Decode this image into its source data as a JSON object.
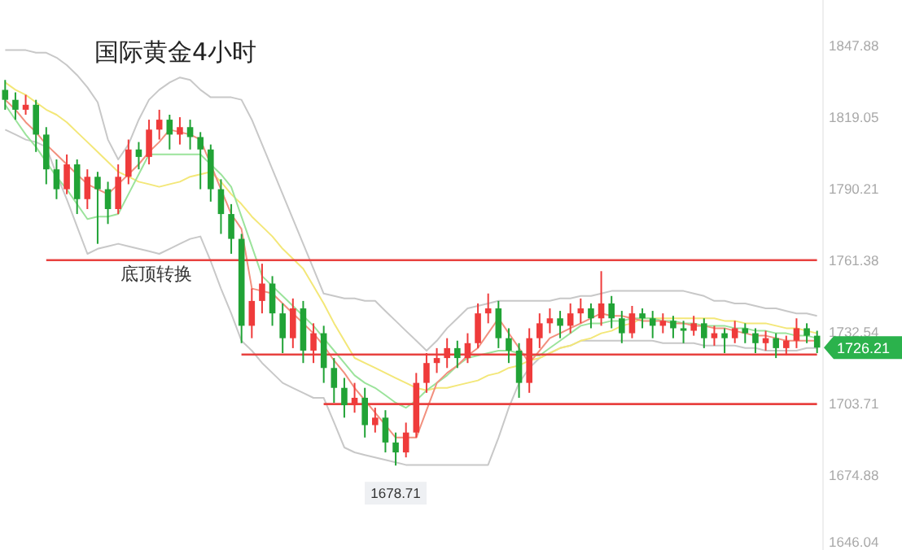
{
  "chart_data": {
    "type": "candlestick",
    "title": "国际黄金4小时",
    "categories": [
      null,
      null,
      null,
      null,
      null,
      null,
      null,
      null,
      null,
      null,
      null,
      null,
      null,
      null,
      null,
      null,
      null,
      null,
      null,
      null,
      null,
      null,
      null,
      null,
      null,
      null,
      null,
      null,
      null,
      null,
      null,
      null,
      null,
      null,
      null,
      null,
      null,
      null,
      null,
      null,
      null,
      null,
      null,
      null,
      null,
      null,
      null,
      null,
      null,
      null,
      null,
      null,
      null,
      null,
      null,
      null,
      null,
      null,
      null,
      null,
      null,
      null,
      null,
      null,
      null,
      null,
      null,
      null,
      null,
      null,
      null,
      null,
      null,
      null,
      null,
      null,
      null,
      null,
      null,
      null
    ],
    "ohlc": [
      [
        1830,
        1834,
        1822,
        1826
      ],
      [
        1826,
        1829,
        1818,
        1822
      ],
      [
        1822,
        1828,
        1820,
        1824
      ],
      [
        1824,
        1826,
        1805,
        1812
      ],
      [
        1812,
        1815,
        1792,
        1798
      ],
      [
        1798,
        1802,
        1786,
        1790
      ],
      [
        1790,
        1804,
        1788,
        1800
      ],
      [
        1800,
        1802,
        1780,
        1786
      ],
      [
        1786,
        1798,
        1782,
        1795
      ],
      [
        1795,
        1797,
        1768,
        1790
      ],
      [
        1790,
        1793,
        1776,
        1782
      ],
      [
        1782,
        1800,
        1780,
        1795
      ],
      [
        1795,
        1810,
        1792,
        1806
      ],
      [
        1806,
        1809,
        1798,
        1803
      ],
      [
        1803,
        1818,
        1800,
        1814
      ],
      [
        1814,
        1822,
        1810,
        1818
      ],
      [
        1818,
        1820,
        1806,
        1812
      ],
      [
        1812,
        1819,
        1808,
        1815
      ],
      [
        1815,
        1818,
        1806,
        1811
      ],
      [
        1811,
        1813,
        1790,
        1806
      ],
      [
        1806,
        1808,
        1785,
        1790
      ],
      [
        1790,
        1794,
        1772,
        1780
      ],
      [
        1780,
        1784,
        1764,
        1770
      ],
      [
        1770,
        1772,
        1728,
        1735
      ],
      [
        1735,
        1750,
        1730,
        1745
      ],
      [
        1745,
        1760,
        1740,
        1752
      ],
      [
        1752,
        1755,
        1735,
        1740
      ],
      [
        1740,
        1744,
        1724,
        1730
      ],
      [
        1730,
        1746,
        1726,
        1742
      ],
      [
        1742,
        1745,
        1720,
        1725
      ],
      [
        1725,
        1736,
        1720,
        1732
      ],
      [
        1732,
        1735,
        1712,
        1718
      ],
      [
        1718,
        1722,
        1704,
        1710
      ],
      [
        1710,
        1714,
        1698,
        1703
      ],
      [
        1703,
        1712,
        1700,
        1706
      ],
      [
        1706,
        1710,
        1690,
        1695
      ],
      [
        1695,
        1702,
        1692,
        1698
      ],
      [
        1698,
        1701,
        1684,
        1688
      ],
      [
        1688,
        1692,
        1678.71,
        1684
      ],
      [
        1684,
        1696,
        1682,
        1692
      ],
      [
        1692,
        1716,
        1690,
        1712
      ],
      [
        1712,
        1724,
        1708,
        1720
      ],
      [
        1720,
        1726,
        1716,
        1722
      ],
      [
        1722,
        1730,
        1718,
        1726
      ],
      [
        1726,
        1729,
        1718,
        1722
      ],
      [
        1722,
        1732,
        1720,
        1728
      ],
      [
        1728,
        1744,
        1726,
        1740
      ],
      [
        1740,
        1748,
        1736,
        1742
      ],
      [
        1742,
        1745,
        1726,
        1730
      ],
      [
        1730,
        1734,
        1720,
        1725
      ],
      [
        1725,
        1728,
        1706,
        1712
      ],
      [
        1712,
        1734,
        1708,
        1730
      ],
      [
        1730,
        1740,
        1726,
        1736
      ],
      [
        1736,
        1742,
        1732,
        1738
      ],
      [
        1738,
        1741,
        1730,
        1735
      ],
      [
        1735,
        1744,
        1732,
        1740
      ],
      [
        1740,
        1746,
        1736,
        1742
      ],
      [
        1742,
        1744,
        1734,
        1738
      ],
      [
        1738,
        1757,
        1735,
        1744
      ],
      [
        1744,
        1747,
        1734,
        1738
      ],
      [
        1738,
        1741,
        1728,
        1732
      ],
      [
        1732,
        1743,
        1730,
        1740
      ],
      [
        1740,
        1742,
        1734,
        1738
      ],
      [
        1738,
        1741,
        1730,
        1735
      ],
      [
        1735,
        1740,
        1732,
        1737
      ],
      [
        1737,
        1739,
        1730,
        1734
      ],
      [
        1734,
        1737,
        1728,
        1733
      ],
      [
        1733,
        1739,
        1731,
        1736
      ],
      [
        1736,
        1738,
        1726,
        1730
      ],
      [
        1730,
        1735,
        1727,
        1732
      ],
      [
        1732,
        1734,
        1724,
        1730
      ],
      [
        1730,
        1737,
        1728,
        1734
      ],
      [
        1734,
        1736,
        1728,
        1732
      ],
      [
        1732,
        1734,
        1724,
        1728
      ],
      [
        1728,
        1733,
        1725,
        1730
      ],
      [
        1730,
        1732,
        1722,
        1726
      ],
      [
        1726,
        1731,
        1723,
        1729
      ],
      [
        1729,
        1738,
        1726,
        1734
      ],
      [
        1734,
        1736,
        1728,
        1731
      ],
      [
        1731,
        1733,
        1724,
        1726.21
      ]
    ],
    "colors": [
      "#21a336",
      "#21a336",
      "#ef3b3b",
      "#21a336",
      "#21a336",
      "#21a336",
      "#ef3b3b",
      "#21a336",
      "#ef3b3b",
      "#21a336",
      "#21a336",
      "#ef3b3b",
      "#ef3b3b",
      "#21a336",
      "#ef3b3b",
      "#ef3b3b",
      "#21a336",
      "#ef3b3b",
      "#21a336",
      "#21a336",
      "#21a336",
      "#21a336",
      "#21a336",
      "#21a336",
      "#ef3b3b",
      "#ef3b3b",
      "#21a336",
      "#21a336",
      "#ef3b3b",
      "#21a336",
      "#ef3b3b",
      "#21a336",
      "#21a336",
      "#21a336",
      "#ef3b3b",
      "#21a336",
      "#ef3b3b",
      "#21a336",
      "#21a336",
      "#ef3b3b",
      "#ef3b3b",
      "#ef3b3b",
      "#ef3b3b",
      "#ef3b3b",
      "#21a336",
      "#ef3b3b",
      "#ef3b3b",
      "#ef3b3b",
      "#21a336",
      "#21a336",
      "#21a336",
      "#ef3b3b",
      "#ef3b3b",
      "#ef3b3b",
      "#21a336",
      "#ef3b3b",
      "#ef3b3b",
      "#21a336",
      "#ef3b3b",
      "#21a336",
      "#21a336",
      "#ef3b3b",
      "#21a336",
      "#21a336",
      "#ef3b3b",
      "#21a336",
      "#21a336",
      "#ef3b3b",
      "#21a336",
      "#ef3b3b",
      "#21a336",
      "#ef3b3b",
      "#21a336",
      "#21a336",
      "#ef3b3b",
      "#21a336",
      "#ef3b3b",
      "#ef3b3b",
      "#21a336",
      "#21a336"
    ],
    "ylim": [
      1644.7,
      1866.2
    ],
    "yticks": [
      1847.88,
      1819.05,
      1790.21,
      1761.38,
      1732.54,
      1703.71,
      1674.88,
      1646.04
    ],
    "series": [
      {
        "type": "line",
        "color": "#c8c8c8",
        "values": [
          1846,
          1846,
          1846,
          1845,
          1845,
          1843,
          1840,
          1836,
          1831,
          1825,
          1810,
          1802,
          1808,
          1818,
          1826,
          1830,
          1833,
          1835,
          1834,
          1830,
          1827,
          1827,
          1827,
          1826,
          1818,
          1808,
          1798,
          1788,
          1778,
          1768,
          1758,
          1748,
          1747,
          1746,
          1746,
          1745,
          1745,
          1741,
          1737,
          1733,
          1729,
          1725,
          1729,
          1734,
          1738,
          1742,
          1743,
          1744,
          1745,
          1745,
          1745,
          1745,
          1745,
          1745,
          1746,
          1746,
          1747,
          1747,
          1748,
          1749,
          1749,
          1749,
          1749,
          1749,
          1749,
          1749,
          1749,
          1748,
          1747,
          1745,
          1745,
          1744,
          1744,
          1743,
          1742,
          1742,
          1741,
          1740,
          1740,
          1739
        ]
      },
      {
        "type": "line",
        "color": "#c8c8c8",
        "values": [
          1814,
          1812,
          1810,
          1809,
          1807,
          1796,
          1786,
          1775,
          1764,
          1766,
          1767,
          1768,
          1767,
          1766,
          1765,
          1764,
          1766,
          1768,
          1770,
          1771,
          1761,
          1750,
          1740,
          1729,
          1725,
          1720,
          1716,
          1712,
          1710,
          1708,
          1706,
          1706,
          1696,
          1686,
          1684,
          1683,
          1682,
          1681,
          1680,
          1679,
          1679,
          1679,
          1679,
          1679,
          1679,
          1679,
          1679,
          1679,
          1690,
          1702,
          1712,
          1718,
          1722,
          1724,
          1726,
          1727,
          1729,
          1729,
          1729,
          1729,
          1729,
          1729,
          1729,
          1729,
          1728,
          1728,
          1728,
          1728,
          1727,
          1727,
          1727,
          1727,
          1726,
          1726,
          1725,
          1725,
          1725,
          1725,
          1726,
          1726
        ]
      },
      {
        "type": "line",
        "color": "#f3e778",
        "values": [
          1833,
          1830,
          1828,
          1825,
          1822,
          1820,
          1817,
          1813,
          1809,
          1805,
          1801,
          1797,
          1795,
          1793,
          1792,
          1791,
          1792,
          1793,
          1795,
          1796,
          1797,
          1793,
          1788,
          1784,
          1779,
          1775,
          1771,
          1766,
          1762,
          1758,
          1751,
          1744,
          1736,
          1729,
          1722,
          1720,
          1718,
          1716,
          1714,
          1712,
          1710,
          1709,
          1710,
          1710,
          1711,
          1712,
          1713,
          1715,
          1716,
          1718,
          1719,
          1721,
          1722,
          1724,
          1726,
          1727,
          1729,
          1730,
          1732,
          1733,
          1735,
          1736,
          1738,
          1738,
          1738,
          1738,
          1738,
          1738,
          1738,
          1738,
          1737,
          1737,
          1736,
          1736,
          1736,
          1735,
          1734,
          1734,
          1733,
          1732
        ]
      },
      {
        "type": "line",
        "color": "#9be39b",
        "values": [
          1824,
          1818,
          1812,
          1807,
          1801,
          1795,
          1790,
          1784,
          1778,
          1779,
          1779,
          1780,
          1788,
          1796,
          1804,
          1804,
          1804,
          1804,
          1804,
          1804,
          1800,
          1796,
          1791,
          1779,
          1767,
          1755,
          1751,
          1747,
          1743,
          1739,
          1735,
          1730,
          1725,
          1720,
          1715,
          1712,
          1710,
          1707,
          1704,
          1702,
          1705,
          1709,
          1712,
          1715,
          1719,
          1722,
          1723,
          1724,
          1725,
          1725,
          1724,
          1723,
          1723,
          1726,
          1729,
          1732,
          1735,
          1736,
          1736,
          1737,
          1737,
          1738,
          1738,
          1738,
          1737,
          1737,
          1736,
          1736,
          1735,
          1735,
          1735,
          1734,
          1734,
          1733,
          1733,
          1732,
          1732,
          1731,
          1731,
          1730
        ]
      },
      {
        "type": "line",
        "color": "#f2907e",
        "values": [
          1826,
          1822,
          1817,
          1813,
          1808,
          1804,
          1800,
          1796,
          1792,
          1790,
          1788,
          1792,
          1796,
          1800,
          1805,
          1809,
          1814,
          1813,
          1812,
          1810,
          1800,
          1790,
          1780,
          1774,
          1750,
          1749,
          1748,
          1744,
          1740,
          1736,
          1732,
          1727,
          1721,
          1716,
          1710,
          1705,
          1700,
          1695,
          1690,
          1690,
          1690,
          1701,
          1712,
          1716,
          1719,
          1723,
          1726,
          1732,
          1738,
          1732,
          1726,
          1720,
          1725,
          1730,
          1732,
          1734,
          1736,
          1738,
          1740,
          1739,
          1739,
          1738,
          1737,
          1737,
          1737,
          1736,
          1736,
          1735,
          1735,
          1734,
          1734,
          1733,
          1732,
          1731,
          1731,
          1730,
          1729,
          1729,
          1729,
          1729
        ]
      },
      {
        "type": "line",
        "color": "#e8413f",
        "values": [
          null,
          null,
          null,
          null,
          1761.4,
          1761.4,
          1761.4,
          1761.4,
          1761.4,
          1761.4,
          1761.4,
          1761.4,
          1761.4,
          1761.4,
          1761.4,
          1761.4,
          1761.4,
          1761.4,
          1761.4,
          1761.4,
          1761.4,
          1761.4,
          1761.4,
          1761.4,
          1761.4,
          1761.4,
          1761.4,
          1761.4,
          1761.4,
          1761.4,
          1761.4,
          1761.4,
          1761.4,
          1761.4,
          1761.4,
          1761.4,
          1761.4,
          1761.4,
          1761.4,
          1761.4,
          1761.4,
          1761.4,
          1761.4,
          1761.4,
          1761.4,
          1761.4,
          1761.4,
          1761.4,
          1761.4,
          1761.4,
          1761.4,
          1761.4,
          1761.4,
          1761.4,
          1761.4,
          1761.4,
          1761.4,
          1761.4,
          1761.4,
          1761.4,
          1761.4,
          1761.4,
          1761.4,
          1761.4,
          1761.4,
          1761.4,
          1761.4,
          1761.4,
          1761.4,
          1761.4,
          1761.4,
          1761.4,
          1761.4,
          1761.4,
          1761.4,
          1761.4,
          1761.4,
          1761.4,
          1761.4,
          1761.4
        ]
      },
      {
        "type": "line",
        "color": "#e8413f",
        "values": [
          null,
          null,
          null,
          null,
          null,
          null,
          null,
          null,
          null,
          null,
          null,
          null,
          null,
          null,
          null,
          null,
          null,
          null,
          null,
          null,
          null,
          null,
          null,
          1723.4,
          1723.4,
          1723.4,
          1723.4,
          1723.4,
          1723.4,
          1723.4,
          1723.4,
          1723.4,
          1723.4,
          1723.4,
          1723.4,
          1723.4,
          1723.4,
          1723.4,
          1723.4,
          1723.4,
          1723.4,
          1723.4,
          1723.4,
          1723.4,
          1723.4,
          1723.4,
          1723.4,
          1723.4,
          1723.4,
          1723.4,
          1723.4,
          1723.4,
          1723.4,
          1723.4,
          1723.4,
          1723.4,
          1723.4,
          1723.4,
          1723.4,
          1723.4,
          1723.4,
          1723.4,
          1723.4,
          1723.4,
          1723.4,
          1723.4,
          1723.4,
          1723.4,
          1723.4,
          1723.4,
          1723.4,
          1723.4,
          1723.4,
          1723.4,
          1723.4,
          1723.4,
          1723.4,
          1723.4,
          1723.4,
          1723.4
        ]
      },
      {
        "type": "line",
        "color": "#e8413f",
        "values": [
          null,
          null,
          null,
          null,
          null,
          null,
          null,
          null,
          null,
          null,
          null,
          null,
          null,
          null,
          null,
          null,
          null,
          null,
          null,
          null,
          null,
          null,
          null,
          null,
          null,
          null,
          null,
          null,
          null,
          null,
          null,
          1703.5,
          1703.5,
          1703.5,
          1703.5,
          1703.5,
          1703.5,
          1703.5,
          1703.5,
          1703.5,
          1703.5,
          1703.5,
          1703.5,
          1703.5,
          1703.5,
          1703.5,
          1703.5,
          1703.5,
          1703.5,
          1703.5,
          1703.5,
          1703.5,
          1703.5,
          1703.5,
          1703.5,
          1703.5,
          1703.5,
          1703.5,
          1703.5,
          1703.5,
          1703.5,
          1703.5,
          1703.5,
          1703.5,
          1703.5,
          1703.5,
          1703.5,
          1703.5,
          1703.5,
          1703.5,
          1703.5,
          1703.5,
          1703.5,
          1703.5,
          1703.5,
          1703.5,
          1703.5,
          1703.5,
          1703.5,
          1703.5
        ]
      }
    ],
    "annotations": [
      "底顶转换",
      {
        "text": "1678.71",
        "y": 1678.71
      },
      "1726.21"
    ]
  }
}
